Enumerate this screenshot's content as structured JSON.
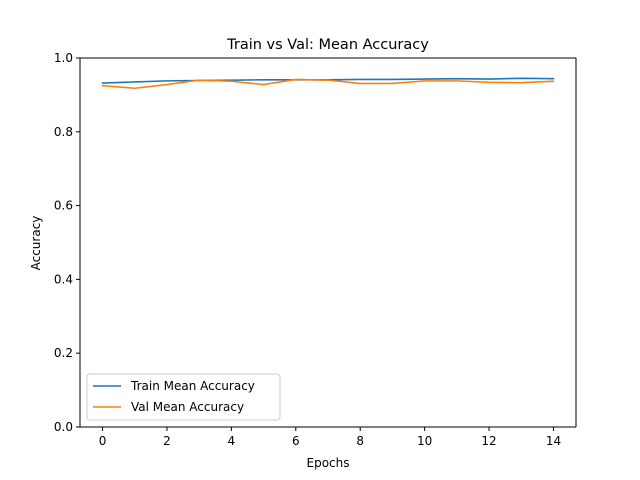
{
  "chart_data": {
    "type": "line",
    "title": "Train vs Val: Mean Accuracy",
    "xlabel": "Epochs",
    "ylabel": "Accuracy",
    "xlim": [
      -0.7,
      14.7
    ],
    "ylim": [
      0.0,
      1.0
    ],
    "x_ticks": [
      0,
      2,
      4,
      6,
      8,
      10,
      12,
      14
    ],
    "y_ticks": [
      0.0,
      0.2,
      0.4,
      0.6,
      0.8,
      1.0
    ],
    "x_tick_labels": [
      "0",
      "2",
      "4",
      "6",
      "8",
      "10",
      "12",
      "14"
    ],
    "y_tick_labels": [
      "0.0",
      "0.2",
      "0.4",
      "0.6",
      "0.8",
      "1.0"
    ],
    "grid": false,
    "legend_position": "lower-left",
    "x": [
      0,
      1,
      2,
      3,
      4,
      5,
      6,
      7,
      8,
      9,
      10,
      11,
      12,
      13,
      14
    ],
    "series": [
      {
        "name": "Train Mean Accuracy",
        "color": "#1f77b4",
        "values": [
          0.932,
          0.935,
          0.938,
          0.939,
          0.94,
          0.941,
          0.941,
          0.941,
          0.942,
          0.942,
          0.943,
          0.944,
          0.943,
          0.945,
          0.944
        ]
      },
      {
        "name": "Val Mean Accuracy",
        "color": "#ff7f0e",
        "values": [
          0.925,
          0.918,
          0.928,
          0.94,
          0.937,
          0.928,
          0.942,
          0.94,
          0.931,
          0.931,
          0.938,
          0.938,
          0.934,
          0.933,
          0.937
        ]
      }
    ]
  }
}
